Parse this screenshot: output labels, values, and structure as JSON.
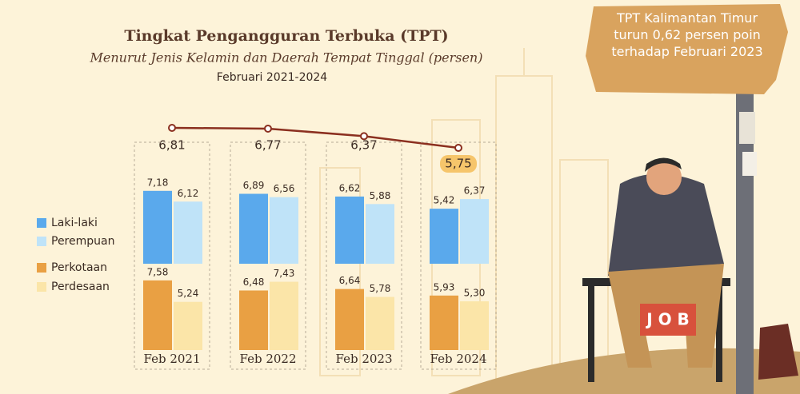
{
  "chart_data": [
    {
      "type": "line",
      "title": "Tingkat Pengangguran Terbuka (TPT)",
      "subtitle": "Menurut Jenis Kelamin dan Daerah Tempat Tinggal (persen)",
      "period": "Februari 2021-2024",
      "annotation": "TPT Kalimantan Timur turun 0,62 persen poin terhadap Februari 2023",
      "values": [
        6.81,
        6.77,
        6.37,
        5.75
      ],
      "value_labels": [
        "6,81",
        "6,77",
        "6,37",
        "5,75"
      ],
      "color": "#8b2f1f"
    },
    {
      "type": "bar",
      "categories": [
        "Feb 2021",
        "Feb 2022",
        "Feb 2023",
        "Feb 2024"
      ],
      "series": [
        {
          "name": "Laki-laki",
          "color": "#5aa9ec",
          "values": [
            7.18,
            6.89,
            6.62,
            5.42
          ],
          "value_labels": [
            "7,18",
            "6,89",
            "6,62",
            "5,42"
          ]
        },
        {
          "name": "Perempuan",
          "color": "#bfe3f8",
          "values": [
            6.12,
            6.56,
            5.88,
            6.37
          ],
          "value_labels": [
            "6,12",
            "6,56",
            "5,88",
            "6,37"
          ]
        },
        {
          "name": "Perkotaan",
          "color": "#e9a043",
          "values": [
            7.58,
            6.48,
            6.64,
            5.93
          ],
          "value_labels": [
            "7,58",
            "6,48",
            "6,64",
            "5,93"
          ]
        },
        {
          "name": "Perdesaan",
          "color": "#fbe5a8",
          "values": [
            5.24,
            7.43,
            5.78,
            5.3
          ],
          "value_labels": [
            "5,24",
            "7,43",
            "5,78",
            "5,30"
          ]
        }
      ]
    }
  ]
}
